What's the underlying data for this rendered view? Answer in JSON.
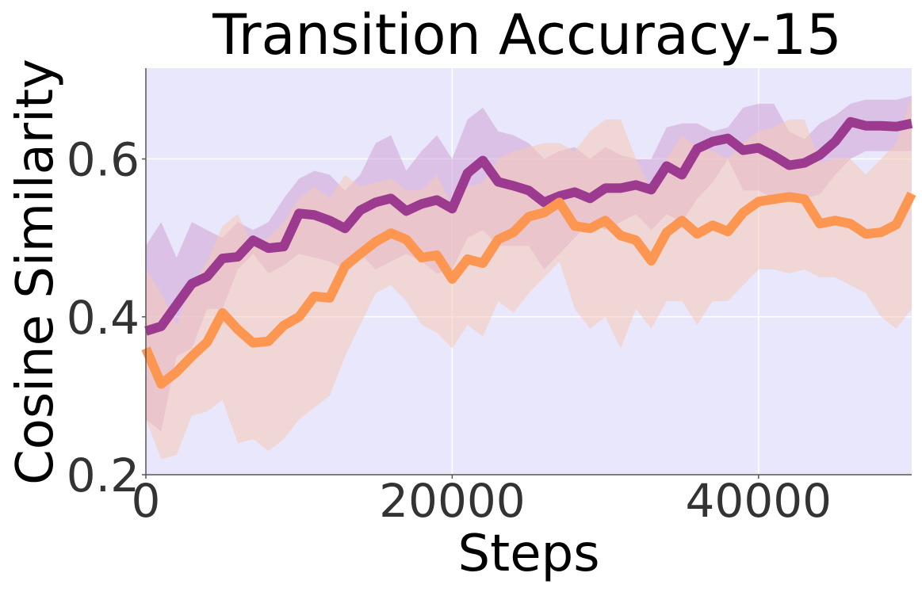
{
  "chart_data": {
    "type": "line",
    "title": "Transition Accuracy-15",
    "xlabel": "Steps",
    "ylabel": "Cosine Similarity",
    "xlim": [
      0,
      50000
    ],
    "ylim": [
      0.2,
      0.715
    ],
    "xticks": [
      0,
      20000,
      40000
    ],
    "xtick_labels": [
      "0",
      "20000",
      "40000"
    ],
    "yticks": [
      0.2,
      0.4,
      0.6
    ],
    "ytick_labels": [
      "0.2",
      "0.4",
      "0.6"
    ],
    "grid": true,
    "background_color": "#e9e7fb",
    "x": [
      0,
      1000,
      2000,
      3000,
      4000,
      5000,
      6000,
      7000,
      8000,
      9000,
      10000,
      11000,
      12000,
      13000,
      14000,
      15000,
      16000,
      17000,
      18000,
      19000,
      20000,
      21000,
      22000,
      23000,
      24000,
      25000,
      26000,
      27000,
      28000,
      29000,
      30000,
      31000,
      32000,
      33000,
      34000,
      35000,
      36000,
      37000,
      38000,
      39000,
      40000,
      41000,
      42000,
      43000,
      44000,
      45000,
      46000,
      47000,
      48000,
      49000,
      50000
    ],
    "series": [
      {
        "color": "#9b3a8f",
        "band_color": "#cfa3d6",
        "values": [
          0.382,
          0.388,
          0.415,
          0.442,
          0.451,
          0.474,
          0.476,
          0.497,
          0.487,
          0.489,
          0.531,
          0.529,
          0.522,
          0.512,
          0.535,
          0.545,
          0.55,
          0.534,
          0.543,
          0.548,
          0.537,
          0.582,
          0.598,
          0.571,
          0.566,
          0.56,
          0.545,
          0.553,
          0.558,
          0.55,
          0.563,
          0.563,
          0.567,
          0.561,
          0.591,
          0.58,
          0.613,
          0.622,
          0.626,
          0.611,
          0.614,
          0.604,
          0.592,
          0.595,
          0.605,
          0.622,
          0.647,
          0.642,
          0.642,
          0.641,
          0.645
        ],
        "lower": [
          0.27,
          0.255,
          0.35,
          0.36,
          0.41,
          0.41,
          0.46,
          0.48,
          0.455,
          0.465,
          0.48,
          0.475,
          0.47,
          0.46,
          0.48,
          0.46,
          0.47,
          0.48,
          0.47,
          0.455,
          0.46,
          0.5,
          0.51,
          0.49,
          0.49,
          0.49,
          0.46,
          0.48,
          0.5,
          0.52,
          0.51,
          0.52,
          0.53,
          0.51,
          0.53,
          0.52,
          0.55,
          0.57,
          0.6,
          0.56,
          0.56,
          0.55,
          0.545,
          0.55,
          0.555,
          0.58,
          0.6,
          0.61,
          0.61,
          0.61,
          0.61
        ],
        "upper": [
          0.49,
          0.52,
          0.475,
          0.52,
          0.51,
          0.5,
          0.52,
          0.51,
          0.52,
          0.55,
          0.575,
          0.585,
          0.58,
          0.56,
          0.58,
          0.62,
          0.63,
          0.585,
          0.61,
          0.63,
          0.6,
          0.65,
          0.665,
          0.635,
          0.63,
          0.62,
          0.6,
          0.61,
          0.615,
          0.6,
          0.615,
          0.605,
          0.6,
          0.6,
          0.64,
          0.645,
          0.645,
          0.635,
          0.64,
          0.665,
          0.67,
          0.67,
          0.635,
          0.625,
          0.645,
          0.655,
          0.67,
          0.675,
          0.675,
          0.675,
          0.68
        ]
      },
      {
        "color": "#fd9650",
        "band_color": "#f6c9b5",
        "values": [
          0.36,
          0.315,
          0.33,
          0.35,
          0.368,
          0.405,
          0.384,
          0.367,
          0.369,
          0.389,
          0.4,
          0.426,
          0.424,
          0.464,
          0.48,
          0.495,
          0.506,
          0.498,
          0.475,
          0.478,
          0.448,
          0.473,
          0.468,
          0.498,
          0.507,
          0.527,
          0.532,
          0.545,
          0.515,
          0.512,
          0.522,
          0.503,
          0.497,
          0.471,
          0.507,
          0.522,
          0.505,
          0.516,
          0.508,
          0.532,
          0.546,
          0.549,
          0.552,
          0.549,
          0.518,
          0.522,
          0.518,
          0.505,
          0.507,
          0.517,
          0.556
        ],
        "lower": [
          0.27,
          0.22,
          0.225,
          0.275,
          0.28,
          0.295,
          0.24,
          0.245,
          0.23,
          0.245,
          0.27,
          0.285,
          0.3,
          0.35,
          0.39,
          0.43,
          0.44,
          0.42,
          0.39,
          0.38,
          0.36,
          0.39,
          0.375,
          0.42,
          0.405,
          0.43,
          0.45,
          0.47,
          0.41,
          0.385,
          0.4,
          0.36,
          0.41,
          0.385,
          0.42,
          0.42,
          0.39,
          0.42,
          0.42,
          0.44,
          0.46,
          0.46,
          0.455,
          0.46,
          0.45,
          0.45,
          0.44,
          0.43,
          0.4,
          0.385,
          0.41
        ],
        "upper": [
          0.46,
          0.43,
          0.39,
          0.44,
          0.47,
          0.515,
          0.53,
          0.49,
          0.5,
          0.52,
          0.55,
          0.565,
          0.55,
          0.58,
          0.565,
          0.57,
          0.575,
          0.56,
          0.56,
          0.58,
          0.54,
          0.565,
          0.57,
          0.6,
          0.61,
          0.615,
          0.62,
          0.62,
          0.61,
          0.635,
          0.65,
          0.65,
          0.6,
          0.56,
          0.6,
          0.63,
          0.615,
          0.61,
          0.6,
          0.62,
          0.635,
          0.64,
          0.65,
          0.65,
          0.595,
          0.6,
          0.6,
          0.58,
          0.6,
          0.62,
          0.68
        ]
      }
    ]
  }
}
